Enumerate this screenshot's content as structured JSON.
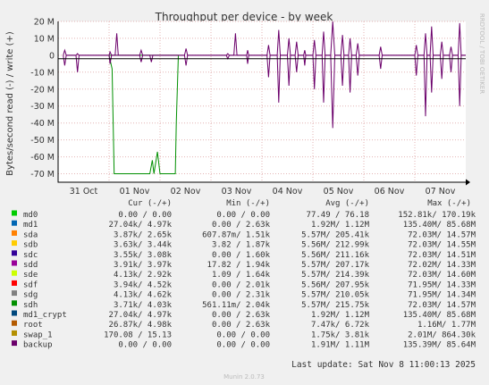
{
  "chart_data": {
    "type": "line",
    "title": "Throughput per device - by week",
    "ylabel": "Bytes/second read (-) / write (+)",
    "side_label": "RRDTOOL / TOBI OETIKER",
    "ylim": [
      -75000000,
      20000000
    ],
    "yticks": [
      {
        "value": 20000000,
        "label": "20 M"
      },
      {
        "value": 10000000,
        "label": "10 M"
      },
      {
        "value": 0,
        "label": "0"
      },
      {
        "value": -10000000,
        "label": "-10 M"
      },
      {
        "value": -20000000,
        "label": "-20 M"
      },
      {
        "value": -30000000,
        "label": "-30 M"
      },
      {
        "value": -40000000,
        "label": "-40 M"
      },
      {
        "value": -50000000,
        "label": "-50 M"
      },
      {
        "value": -60000000,
        "label": "-60 M"
      },
      {
        "value": -70000000,
        "label": "-70 M"
      }
    ],
    "xlim": [
      0,
      8
    ],
    "xticks": [
      {
        "value": 0.5,
        "label": "31 Oct"
      },
      {
        "value": 1.5,
        "label": "01 Nov"
      },
      {
        "value": 2.5,
        "label": "02 Nov"
      },
      {
        "value": 3.5,
        "label": "03 Nov"
      },
      {
        "value": 4.5,
        "label": "04 Nov"
      },
      {
        "value": 5.5,
        "label": "05 Nov"
      },
      {
        "value": 6.5,
        "label": "06 Nov"
      },
      {
        "value": 7.5,
        "label": "07 Nov"
      }
    ],
    "grid": true,
    "series": [
      {
        "name": "md0",
        "color": "#00cc00"
      },
      {
        "name": "md1",
        "color": "#0066b3"
      },
      {
        "name": "sda",
        "color": "#ff8000"
      },
      {
        "name": "sdb",
        "color": "#ffcc00"
      },
      {
        "name": "sdc",
        "color": "#330099"
      },
      {
        "name": "sdd",
        "color": "#990099"
      },
      {
        "name": "sde",
        "color": "#ccff00"
      },
      {
        "name": "sdf",
        "color": "#ff0000"
      },
      {
        "name": "sdg",
        "color": "#808080"
      },
      {
        "name": "sdh",
        "color": "#008f00"
      },
      {
        "name": "md1_crypt",
        "color": "#00487d"
      },
      {
        "name": "root",
        "color": "#b35a00"
      },
      {
        "name": "swap_1",
        "color": "#b38f00"
      },
      {
        "name": "backup",
        "color": "#6b006b"
      }
    ],
    "drawn_series": {
      "sdh": {
        "read": [
          [
            1.0,
            0
          ],
          [
            1.06,
            -8000000
          ],
          [
            1.1,
            -70000000
          ],
          [
            1.8,
            -70000000
          ],
          [
            1.85,
            -62000000
          ],
          [
            1.88,
            -70000000
          ],
          [
            1.95,
            -57000000
          ],
          [
            2.0,
            -70000000
          ],
          [
            2.3,
            -70000000
          ],
          [
            2.32,
            -40000000
          ],
          [
            2.36,
            0
          ]
        ],
        "write": [
          [
            1.0,
            0
          ],
          [
            2.36,
            0
          ]
        ]
      },
      "backup": {
        "read": [
          [
            0.1,
            0
          ],
          [
            0.13,
            -6000000
          ],
          [
            0.16,
            0
          ],
          [
            0.35,
            0
          ],
          [
            0.38,
            -10000000
          ],
          [
            0.41,
            0
          ],
          [
            1.0,
            0
          ],
          [
            1.02,
            -5000000
          ],
          [
            1.05,
            0
          ],
          [
            1.6,
            0
          ],
          [
            1.63,
            -4000000
          ],
          [
            1.66,
            0
          ],
          [
            1.8,
            0
          ],
          [
            1.83,
            -4000000
          ],
          [
            1.86,
            0
          ],
          [
            2.48,
            0
          ],
          [
            2.51,
            -6000000
          ],
          [
            2.54,
            0
          ],
          [
            3.3,
            0
          ],
          [
            3.33,
            -2000000
          ],
          [
            3.36,
            0
          ],
          [
            3.7,
            0
          ],
          [
            3.72,
            -5000000
          ],
          [
            3.74,
            0
          ],
          [
            4.1,
            0
          ],
          [
            4.13,
            -13000000
          ],
          [
            4.16,
            0
          ],
          [
            4.3,
            0
          ],
          [
            4.33,
            -28000000
          ],
          [
            4.36,
            0
          ],
          [
            4.5,
            0
          ],
          [
            4.53,
            -18000000
          ],
          [
            4.56,
            0
          ],
          [
            4.65,
            0
          ],
          [
            4.68,
            -10000000
          ],
          [
            4.71,
            0
          ],
          [
            4.82,
            0
          ],
          [
            4.84,
            -6000000
          ],
          [
            4.86,
            0
          ],
          [
            5.0,
            0
          ],
          [
            5.03,
            -20000000
          ],
          [
            5.06,
            0
          ],
          [
            5.18,
            0
          ],
          [
            5.21,
            -28000000
          ],
          [
            5.24,
            0
          ],
          [
            5.35,
            0
          ],
          [
            5.39,
            -43000000
          ],
          [
            5.43,
            0
          ],
          [
            5.55,
            0
          ],
          [
            5.58,
            -18000000
          ],
          [
            5.61,
            0
          ],
          [
            5.7,
            0
          ],
          [
            5.73,
            -22000000
          ],
          [
            5.76,
            0
          ],
          [
            5.85,
            0
          ],
          [
            5.88,
            -12000000
          ],
          [
            5.91,
            0
          ],
          [
            6.3,
            0
          ],
          [
            6.33,
            -8000000
          ],
          [
            6.36,
            0
          ],
          [
            7.0,
            0
          ],
          [
            7.03,
            -12000000
          ],
          [
            7.06,
            0
          ],
          [
            7.18,
            0
          ],
          [
            7.21,
            -36000000
          ],
          [
            7.24,
            0
          ],
          [
            7.3,
            0
          ],
          [
            7.33,
            -22000000
          ],
          [
            7.36,
            0
          ],
          [
            7.5,
            0
          ],
          [
            7.53,
            -14000000
          ],
          [
            7.56,
            0
          ],
          [
            7.68,
            0
          ],
          [
            7.71,
            -10000000
          ],
          [
            7.74,
            0
          ],
          [
            7.85,
            0
          ],
          [
            7.88,
            -30000000
          ],
          [
            7.91,
            0
          ],
          [
            8.0,
            0
          ]
        ],
        "write": [
          [
            0.1,
            0
          ],
          [
            0.13,
            3000000
          ],
          [
            0.16,
            0
          ],
          [
            0.35,
            0
          ],
          [
            0.38,
            1000000
          ],
          [
            0.41,
            0
          ],
          [
            1.0,
            0
          ],
          [
            1.02,
            2000000
          ],
          [
            1.05,
            0
          ],
          [
            1.12,
            0
          ],
          [
            1.15,
            13000000
          ],
          [
            1.18,
            0
          ],
          [
            1.6,
            0
          ],
          [
            1.63,
            3000000
          ],
          [
            1.66,
            0
          ],
          [
            2.48,
            0
          ],
          [
            2.51,
            4000000
          ],
          [
            2.54,
            0
          ],
          [
            3.3,
            0
          ],
          [
            3.33,
            1000000
          ],
          [
            3.36,
            0
          ],
          [
            3.45,
            0
          ],
          [
            3.48,
            13000000
          ],
          [
            3.51,
            0
          ],
          [
            3.7,
            0
          ],
          [
            3.72,
            3000000
          ],
          [
            3.74,
            0
          ],
          [
            4.1,
            0
          ],
          [
            4.13,
            6000000
          ],
          [
            4.16,
            0
          ],
          [
            4.3,
            0
          ],
          [
            4.33,
            15000000
          ],
          [
            4.36,
            0
          ],
          [
            4.5,
            0
          ],
          [
            4.53,
            10000000
          ],
          [
            4.56,
            0
          ],
          [
            4.65,
            0
          ],
          [
            4.68,
            8000000
          ],
          [
            4.71,
            0
          ],
          [
            4.82,
            0
          ],
          [
            4.84,
            3000000
          ],
          [
            4.86,
            0
          ],
          [
            5.0,
            0
          ],
          [
            5.03,
            9000000
          ],
          [
            5.06,
            0
          ],
          [
            5.18,
            0
          ],
          [
            5.21,
            14000000
          ],
          [
            5.24,
            0
          ],
          [
            5.35,
            0
          ],
          [
            5.39,
            20000000
          ],
          [
            5.43,
            0
          ],
          [
            5.55,
            0
          ],
          [
            5.58,
            12000000
          ],
          [
            5.61,
            0
          ],
          [
            5.7,
            0
          ],
          [
            5.73,
            10000000
          ],
          [
            5.76,
            0
          ],
          [
            5.85,
            0
          ],
          [
            5.88,
            7000000
          ],
          [
            5.91,
            0
          ],
          [
            6.3,
            0
          ],
          [
            6.33,
            5000000
          ],
          [
            6.36,
            0
          ],
          [
            7.0,
            0
          ],
          [
            7.03,
            6000000
          ],
          [
            7.06,
            0
          ],
          [
            7.18,
            0
          ],
          [
            7.21,
            13000000
          ],
          [
            7.24,
            0
          ],
          [
            7.3,
            0
          ],
          [
            7.33,
            17000000
          ],
          [
            7.36,
            0
          ],
          [
            7.5,
            0
          ],
          [
            7.53,
            8000000
          ],
          [
            7.56,
            0
          ],
          [
            7.68,
            0
          ],
          [
            7.71,
            5000000
          ],
          [
            7.74,
            0
          ],
          [
            7.85,
            0
          ],
          [
            7.88,
            19000000
          ],
          [
            7.91,
            0
          ],
          [
            8.0,
            0
          ]
        ]
      }
    },
    "legend_headers": {
      "cur": "Cur (-/+)",
      "min": "Min (-/+)",
      "avg": "Avg (-/+)",
      "max": "Max (-/+)"
    },
    "table": [
      {
        "name": "md0",
        "cur": "0.00 /   0.00",
        "min": "0.00 /   0.00",
        "avg": "77.49 /  76.18",
        "max": "152.81k/ 170.19k"
      },
      {
        "name": "md1",
        "cur": "27.04k/   4.97k",
        "min": "0.00 /   2.63k",
        "avg": "1.92M/   1.12M",
        "max": "135.40M/  85.68M"
      },
      {
        "name": "sda",
        "cur": "3.87k/   2.65k",
        "min": "607.87m/   1.51k",
        "avg": "5.57M/ 205.41k",
        "max": "72.03M/  14.57M"
      },
      {
        "name": "sdb",
        "cur": "3.63k/   3.44k",
        "min": "3.82 /   1.87k",
        "avg": "5.56M/ 212.99k",
        "max": "72.03M/  14.55M"
      },
      {
        "name": "sdc",
        "cur": "3.55k/   3.08k",
        "min": "0.00 /   1.60k",
        "avg": "5.56M/ 211.16k",
        "max": "72.03M/  14.51M"
      },
      {
        "name": "sdd",
        "cur": "3.91k/   3.97k",
        "min": "17.82 /   1.94k",
        "avg": "5.57M/ 207.17k",
        "max": "72.02M/  14.33M"
      },
      {
        "name": "sde",
        "cur": "4.13k/   2.92k",
        "min": "1.09 /   1.64k",
        "avg": "5.57M/ 214.39k",
        "max": "72.03M/  14.60M"
      },
      {
        "name": "sdf",
        "cur": "3.94k/   4.52k",
        "min": "0.00 /   2.01k",
        "avg": "5.56M/ 207.95k",
        "max": "71.95M/  14.33M"
      },
      {
        "name": "sdg",
        "cur": "4.13k/   4.62k",
        "min": "0.00 /   2.31k",
        "avg": "5.57M/ 210.05k",
        "max": "71.95M/  14.34M"
      },
      {
        "name": "sdh",
        "cur": "3.71k/   4.03k",
        "min": "561.11m/   2.04k",
        "avg": "5.57M/ 215.75k",
        "max": "72.03M/  14.57M"
      },
      {
        "name": "md1_crypt",
        "cur": "27.04k/   4.97k",
        "min": "0.00 /   2.63k",
        "avg": "1.92M/   1.12M",
        "max": "135.40M/  85.68M"
      },
      {
        "name": "root",
        "cur": "26.87k/   4.98k",
        "min": "0.00 /   2.63k",
        "avg": "7.47k/   6.72k",
        "max": "1.16M/   1.77M"
      },
      {
        "name": "swap_1",
        "cur": "170.08 /  15.13",
        "min": "0.00 /   0.00",
        "avg": "1.75k/   3.81k",
        "max": "2.01M/ 864.30k"
      },
      {
        "name": "backup",
        "cur": "0.00 /   0.00",
        "min": "0.00 /   0.00",
        "avg": "1.91M/   1.11M",
        "max": "135.39M/  85.64M"
      }
    ],
    "last_update": "Last update: Sat Nov  8 11:00:13 2025",
    "footer": "Munin 2.0.73"
  }
}
